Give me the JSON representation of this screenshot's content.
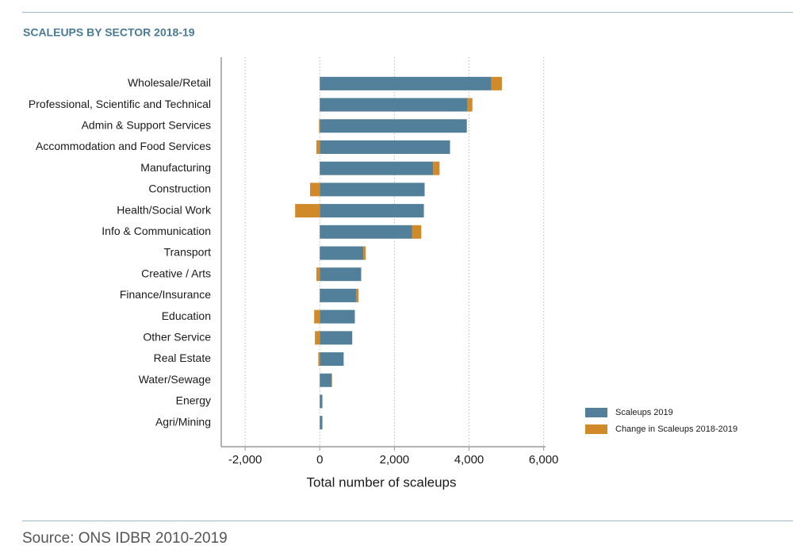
{
  "chart_data": {
    "type": "bar",
    "orientation": "horizontal",
    "stacked": true,
    "title": "SCALEUPS BY SECTOR 2018-19",
    "xlabel": "Total number of scaleups",
    "source": "Source: ONS IDBR 2010-2019",
    "categories": [
      "Wholesale/Retail",
      "Professional, Scientific and Technical",
      "Admin & Support Services",
      "Accommodation and Food Services",
      "Manufacturing",
      "Construction",
      "Health/Social Work",
      "Info & Communication",
      "Transport",
      "Creative / Arts",
      "Finance/Insurance",
      "Education",
      "Other Service",
      "Real Estate",
      "Water/Sewage",
      "Energy",
      "Agri/Mining"
    ],
    "series": [
      {
        "name": "Scaleups 2019",
        "color": "#52809a",
        "values": [
          4600,
          3960,
          3940,
          3490,
          3040,
          2810,
          2790,
          2470,
          1170,
          1110,
          980,
          940,
          870,
          640,
          320,
          70,
          70
        ]
      },
      {
        "name": "Change in Scaleups 2018-2019",
        "color": "#d08a2a",
        "values": [
          280,
          130,
          -20,
          -90,
          170,
          -260,
          -660,
          250,
          60,
          -90,
          60,
          -150,
          -130,
          -40,
          10,
          0,
          0
        ]
      }
    ],
    "xlim": [
      -2640,
      6050
    ],
    "xticks": [
      {
        "value": -2000,
        "label": "-2,000"
      },
      0,
      {
        "value": 2000,
        "label": "2,000"
      },
      {
        "value": 4000,
        "label": "4,000"
      },
      {
        "value": 6000,
        "label": "6,000"
      }
    ],
    "grid": true,
    "legend": "lower right"
  }
}
